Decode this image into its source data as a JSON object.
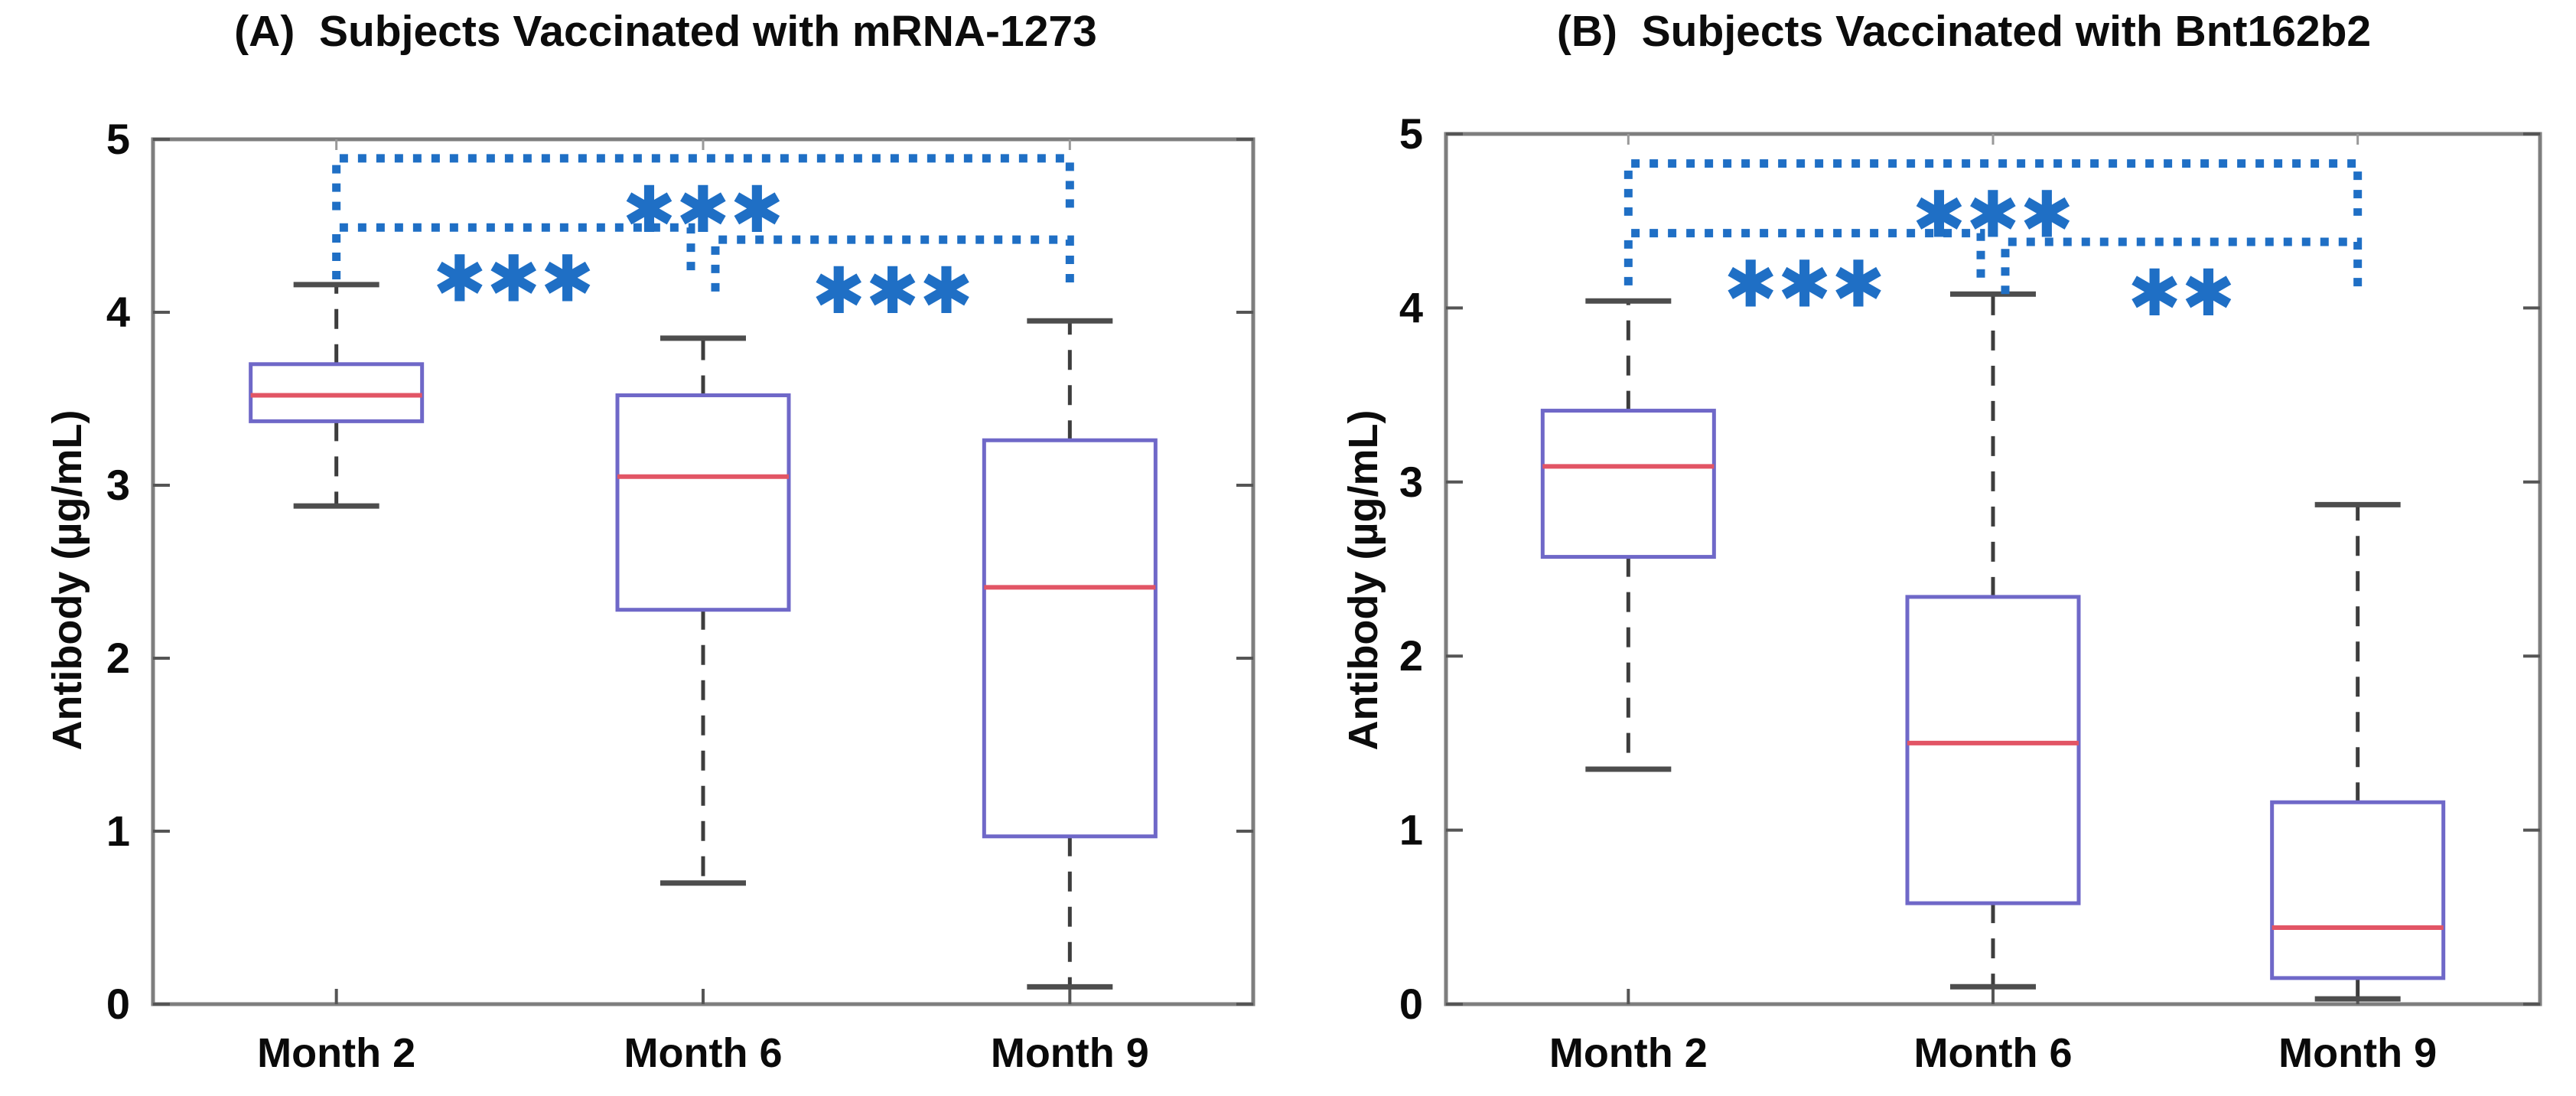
{
  "figure": {
    "background": "#ffffff",
    "titles": {
      "panel_a": "(A)  Subjects Vaccinated with mRNA-1273",
      "panel_b": "(B)  Subjects Vaccinated with Bnt162b2"
    }
  },
  "chart_data": [
    {
      "type": "box",
      "panel": "A",
      "title": "(A)  Subjects Vaccinated with mRNA-1273",
      "xlabel": "",
      "ylabel": "Antibody (µg/mL)",
      "ylim": [
        0,
        5
      ],
      "yticks": [
        0,
        1,
        2,
        3,
        4,
        5
      ],
      "grid": false,
      "legend": "none",
      "categories": [
        "Month 2",
        "Month 6",
        "Month 9"
      ],
      "series": [
        {
          "category": "Month 2",
          "whisker_low": 2.88,
          "q1": 3.37,
          "median": 3.52,
          "q3": 3.7,
          "whisker_high": 4.16
        },
        {
          "category": "Month 6",
          "whisker_low": 0.7,
          "q1": 2.28,
          "median": 3.05,
          "q3": 3.52,
          "whisker_high": 3.85
        },
        {
          "category": "Month 9",
          "whisker_low": 0.1,
          "q1": 0.97,
          "median": 2.41,
          "q3": 3.26,
          "whisker_high": 3.95
        }
      ],
      "significance": [
        {
          "from": "Month 2",
          "to": "Month 6",
          "y": 4.49,
          "label": "***"
        },
        {
          "from": "Month 2",
          "to": "Month 9",
          "y": 4.89,
          "label": "***"
        },
        {
          "from": "Month 6",
          "to": "Month 9",
          "y": 4.42,
          "label": "***"
        }
      ],
      "colors": {
        "box": "#6f68c8",
        "median": "#e25565",
        "whisker": "#3d3d3d",
        "cap": "#4d4d4d",
        "bracket": "#1f6fc5",
        "frame": "#7e7e7e",
        "text": "#0a0a0a"
      }
    },
    {
      "type": "box",
      "panel": "B",
      "title": "(B)  Subjects Vaccinated with Bnt162b2",
      "xlabel": "",
      "ylabel": "Antibody (µg/mL)",
      "ylim": [
        0,
        5
      ],
      "yticks": [
        0,
        1,
        2,
        3,
        4,
        5
      ],
      "grid": false,
      "legend": "none",
      "categories": [
        "Month 2",
        "Month 6",
        "Month 9"
      ],
      "series": [
        {
          "category": "Month 2",
          "whisker_low": 1.35,
          "q1": 2.57,
          "median": 3.09,
          "q3": 3.41,
          "whisker_high": 4.04
        },
        {
          "category": "Month 6",
          "whisker_low": 0.1,
          "q1": 0.58,
          "median": 1.5,
          "q3": 2.34,
          "whisker_high": 4.08
        },
        {
          "category": "Month 9",
          "whisker_low": 0.03,
          "q1": 0.15,
          "median": 0.44,
          "q3": 1.16,
          "whisker_high": 2.87
        }
      ],
      "significance": [
        {
          "from": "Month 2",
          "to": "Month 6",
          "y": 4.43,
          "label": "***"
        },
        {
          "from": "Month 2",
          "to": "Month 9",
          "y": 4.83,
          "label": "***"
        },
        {
          "from": "Month 6",
          "to": "Month 9",
          "y": 4.38,
          "label": "**"
        }
      ],
      "colors": {
        "box": "#6f68c8",
        "median": "#e25565",
        "whisker": "#3d3d3d",
        "cap": "#4d4d4d",
        "bracket": "#1f6fc5",
        "frame": "#7e7e7e",
        "text": "#0a0a0a"
      }
    }
  ]
}
